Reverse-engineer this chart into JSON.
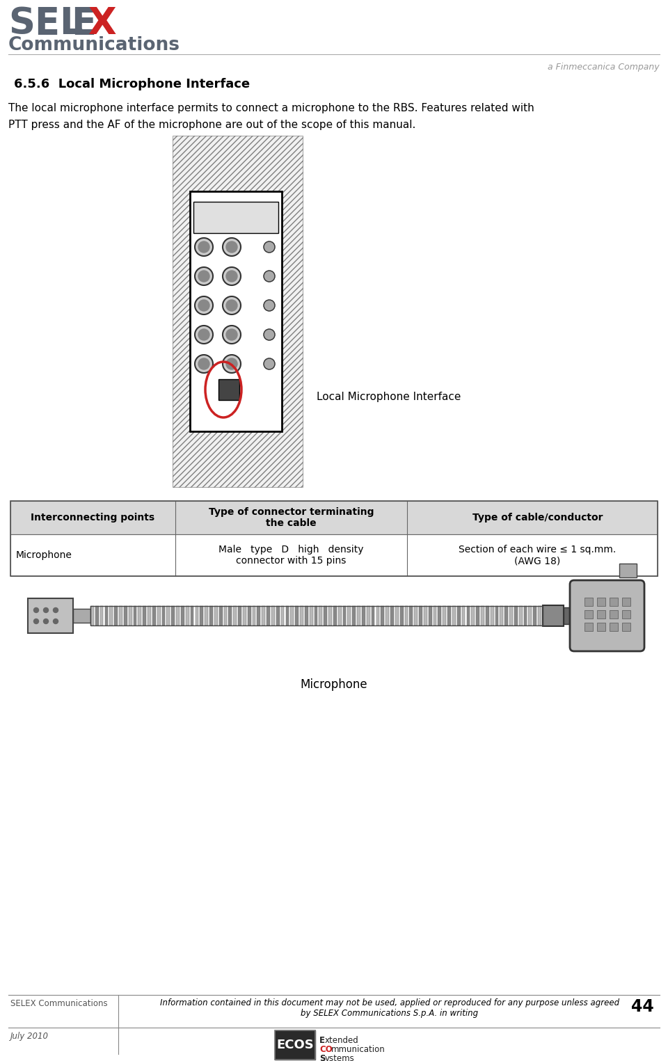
{
  "bg_color": "#ffffff",
  "header_line_color": "#aaaaaa",
  "selex_text_gray": "#5a6472",
  "selex_x_red": "#cc2222",
  "section_title": "6.5.6  Local Microphone Interface",
  "body_line1": "The local microphone interface permits to connect a microphone to the RBS. Features related with",
  "body_line2": "PTT press and the AF of the microphone are out of the scope of this manual.",
  "table_headers": [
    "Interconnecting points",
    "Type of connector terminating\nthe cable",
    "Type of cable/conductor"
  ],
  "table_row_col0": "Microphone",
  "table_row_col1": "Male   type   D   high   density\nconnector with 15 pins",
  "table_row_col2": "Section of each wire ≤ 1 sq.mm.\n(AWG 18)",
  "caption_device": "Local Microphone Interface",
  "caption_micro": "Microphone",
  "footer_left_top": "SELEX Communications",
  "footer_left_bottom": "July 2010",
  "footer_center": "Information contained in this document may not be used, applied or reproduced for any purpose unless agreed\nby SELEX Communications S.p.A. in writing",
  "footer_page": "44",
  "finmeccanica_text": "a Finmeccanica Company",
  "ecos_box_color": "#2a2a2a",
  "ecos_red": "#cc2222",
  "ecos_dark": "#222222"
}
